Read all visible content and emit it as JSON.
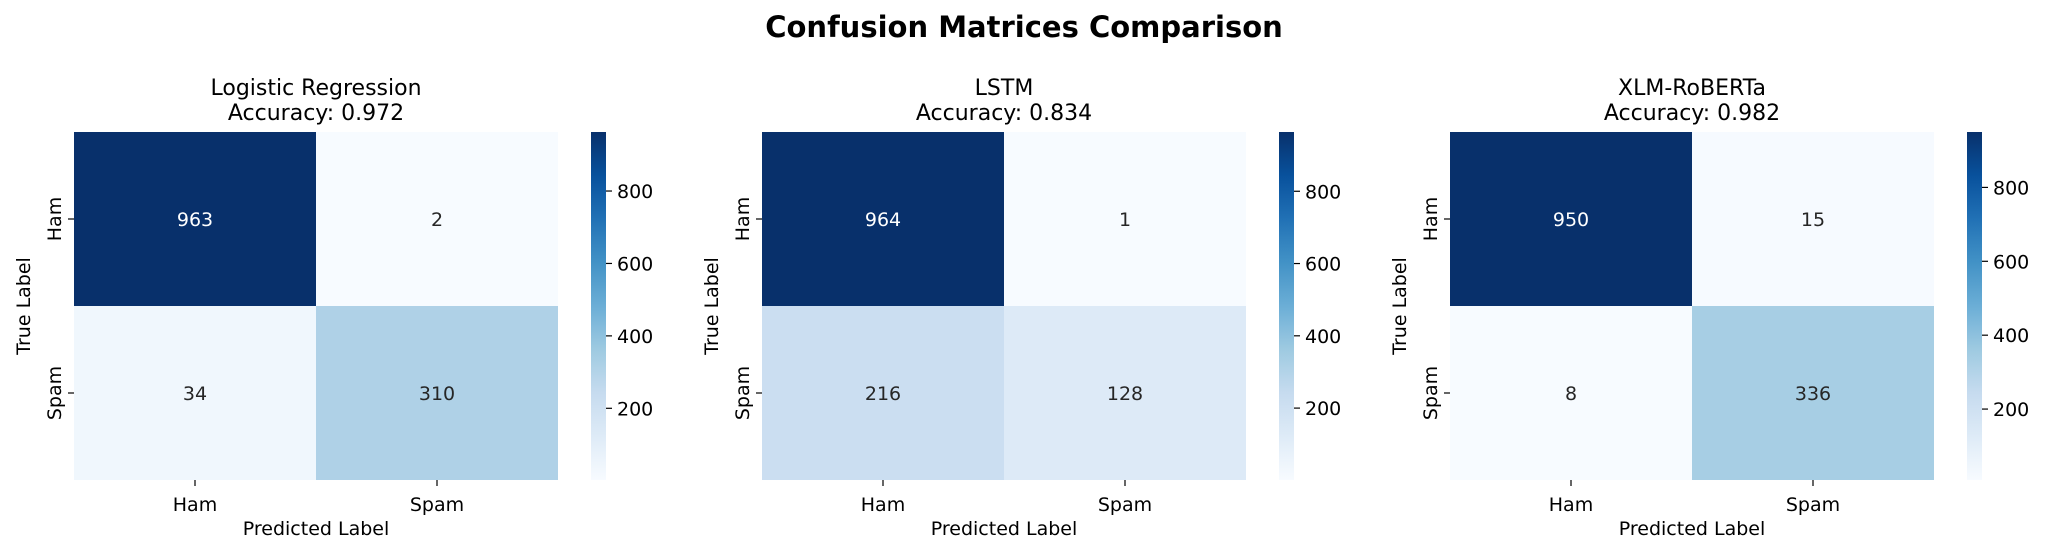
{
  "figure": {
    "suptitle": "Confusion Matrices Comparison"
  },
  "colormap": {
    "name": "Blues",
    "low": "#f7fbff",
    "high": "#08306b"
  },
  "chart_data": [
    {
      "type": "heatmap",
      "title": "Logistic Regression",
      "subtitle": "Accuracy: 0.972",
      "xlabel": "Predicted Label",
      "ylabel": "True Label",
      "x_categories": [
        "Ham",
        "Spam"
      ],
      "y_categories": [
        "Ham",
        "Spam"
      ],
      "values": [
        [
          963,
          2
        ],
        [
          34,
          310
        ]
      ],
      "colorbar_ticks": [
        "200",
        "400",
        "600",
        "800"
      ]
    },
    {
      "type": "heatmap",
      "title": "LSTM",
      "subtitle": "Accuracy: 0.834",
      "xlabel": "Predicted Label",
      "ylabel": "True Label",
      "x_categories": [
        "Ham",
        "Spam"
      ],
      "y_categories": [
        "Ham",
        "Spam"
      ],
      "values": [
        [
          964,
          1
        ],
        [
          216,
          128
        ]
      ],
      "colorbar_ticks": [
        "200",
        "400",
        "600",
        "800"
      ]
    },
    {
      "type": "heatmap",
      "title": "XLM-RoBERTa",
      "subtitle": "Accuracy: 0.982",
      "xlabel": "Predicted Label",
      "ylabel": "True Label",
      "x_categories": [
        "Ham",
        "Spam"
      ],
      "y_categories": [
        "Ham",
        "Spam"
      ],
      "values": [
        [
          950,
          15
        ],
        [
          8,
          336
        ]
      ],
      "colorbar_ticks": [
        "200",
        "400",
        "600",
        "800"
      ]
    }
  ]
}
